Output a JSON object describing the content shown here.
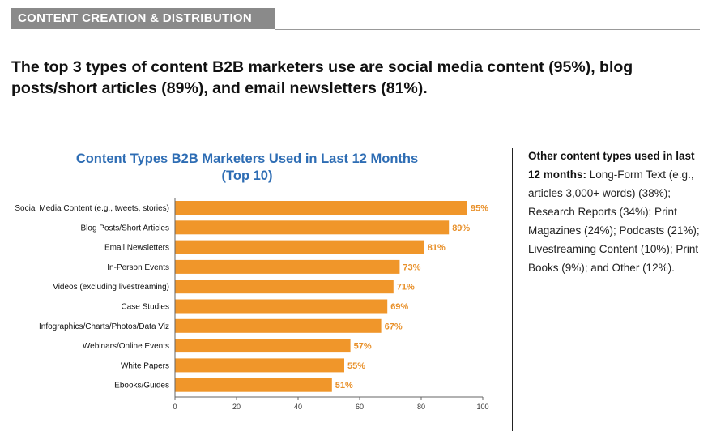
{
  "section": {
    "label": "CONTENT CREATION & DISTRIBUTION"
  },
  "headline": "The top 3 types of content B2B marketers use are social media content (95%), blog posts/short articles (89%), and email newsletters (81%).",
  "side_note": {
    "lead": "Other content types used in last 12 months:",
    "body": " Long-Form Text (e.g., articles 3,000+ words) (38%); Research Reports (34%); Print Magazines (24%); Podcasts (21%); Livestreaming Content (10%); Print Books (9%); and Other (12%)."
  },
  "colors": {
    "bar": "#f0962a",
    "value_label": "#e8902a",
    "title": "#2e6db4"
  },
  "chart_data": {
    "type": "bar",
    "orientation": "horizontal",
    "title_lines": [
      "Content Types B2B Marketers Used in Last 12 Months",
      "(Top 10)"
    ],
    "categories": [
      "Social Media Content (e.g., tweets, stories)",
      "Blog Posts/Short Articles",
      "Email Newsletters",
      "In-Person Events",
      "Videos (excluding livestreaming)",
      "Case Studies",
      "Infographics/Charts/Photos/Data Viz",
      "Webinars/Online Events",
      "White Papers",
      "Ebooks/Guides"
    ],
    "values": [
      95,
      89,
      81,
      73,
      71,
      69,
      67,
      57,
      55,
      51
    ],
    "value_labels": [
      "95%",
      "89%",
      "81%",
      "73%",
      "71%",
      "69%",
      "67%",
      "57%",
      "55%",
      "51%"
    ],
    "xlim": [
      0,
      100
    ],
    "xticks": [
      0,
      20,
      40,
      60,
      80,
      100
    ],
    "grid": false,
    "legend": "none"
  }
}
